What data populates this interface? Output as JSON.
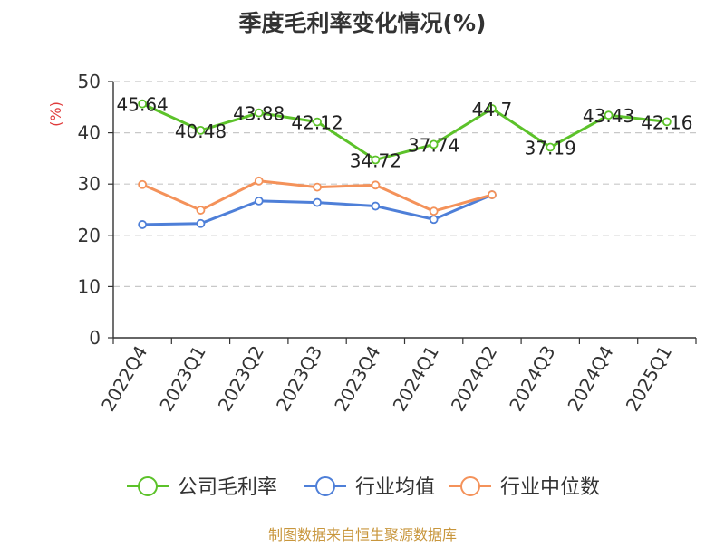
{
  "chart_data": {
    "type": "line",
    "title": "季度毛利率变化情况(%)",
    "ylabel": "(%)",
    "xlabel": "",
    "ylim": [
      0,
      50
    ],
    "yticks": [
      0,
      10,
      20,
      30,
      40,
      50
    ],
    "grid": true,
    "legend_position": "bottom",
    "categories": [
      "2022Q4",
      "2023Q1",
      "2023Q2",
      "2023Q3",
      "2023Q4",
      "2024Q1",
      "2024Q2",
      "2024Q3",
      "2024Q4",
      "2025Q1"
    ],
    "series": [
      {
        "name": "公司毛利率",
        "color": "#5cc22a",
        "values": [
          45.64,
          40.48,
          43.88,
          42.12,
          34.72,
          37.74,
          44.7,
          37.19,
          43.43,
          42.16
        ],
        "labels": [
          "45.64",
          "40.48",
          "43.88",
          "42.12",
          "34.72",
          "37.74",
          "44.7",
          "37.19",
          "43.43",
          "42.16"
        ]
      },
      {
        "name": "行业均值",
        "color": "#4e7fd8",
        "values": [
          22.1,
          22.3,
          26.7,
          26.4,
          25.7,
          23.1,
          27.9,
          null,
          null,
          null
        ]
      },
      {
        "name": "行业中位数",
        "color": "#f4925a",
        "values": [
          29.9,
          24.9,
          30.6,
          29.4,
          29.8,
          24.7,
          27.9,
          null,
          null,
          null
        ]
      }
    ]
  },
  "footer": {
    "source": "制图数据来自恒生聚源数据库"
  }
}
